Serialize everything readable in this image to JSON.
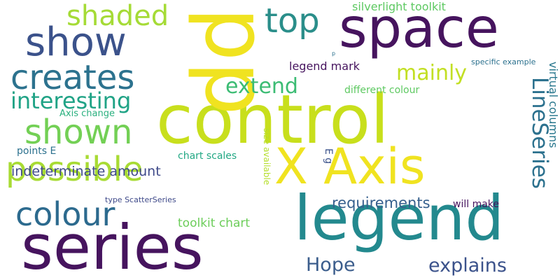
{
  "words": [
    {
      "text": "control",
      "color": "#c8df1c",
      "vertical": false
    },
    {
      "text": "pp",
      "color": "#f0e320",
      "vertical": true
    },
    {
      "text": "series",
      "color": "#46145e",
      "vertical": false
    },
    {
      "text": "legend",
      "color": "#23898e",
      "vertical": false
    },
    {
      "text": "space",
      "color": "#46145e",
      "vertical": false
    },
    {
      "text": "X Axis",
      "color": "#f0e320",
      "vertical": false
    },
    {
      "text": "show",
      "color": "#3b528b",
      "vertical": false
    },
    {
      "text": "creates",
      "color": "#2c728e",
      "vertical": false
    },
    {
      "text": "possible",
      "color": "#a8db34",
      "vertical": false
    },
    {
      "text": "shown",
      "color": "#73d055",
      "vertical": false
    },
    {
      "text": "colour",
      "color": "#2c6a8e",
      "vertical": false
    },
    {
      "text": "shaded",
      "color": "#a5db36",
      "vertical": false
    },
    {
      "text": "top",
      "color": "#2a8e8a",
      "vertical": false
    },
    {
      "text": "LineSeries",
      "color": "#2c718e",
      "vertical": true
    },
    {
      "text": "interesting",
      "color": "#20a386",
      "vertical": false
    },
    {
      "text": "extend",
      "color": "#3cbc74",
      "vertical": false
    },
    {
      "text": "mainly",
      "color": "#c2df23",
      "vertical": false
    },
    {
      "text": "Hope",
      "color": "#3b5d8c",
      "vertical": false
    },
    {
      "text": "explains",
      "color": "#3b528b",
      "vertical": false
    },
    {
      "text": "requirements",
      "color": "#355f8d",
      "vertical": false
    },
    {
      "text": "indeterminate amount",
      "color": "#3e4989",
      "vertical": false
    },
    {
      "text": "silverlight toolkit",
      "color": "#5ec962",
      "vertical": false
    },
    {
      "text": "legend mark",
      "color": "#46145e",
      "vertical": false
    },
    {
      "text": "virtual columns",
      "color": "#2a788e",
      "vertical": true
    },
    {
      "text": "toolkit chart",
      "color": "#6ccd5a",
      "vertical": false
    },
    {
      "text": "different colour",
      "color": "#5ec962",
      "vertical": false
    },
    {
      "text": "points E",
      "color": "#2c718e",
      "vertical": false
    },
    {
      "text": "chart scales",
      "color": "#22a884",
      "vertical": false
    },
    {
      "text": "will make",
      "color": "#46145e",
      "vertical": false
    },
    {
      "text": "E g",
      "color": "#3b528b",
      "vertical": true
    },
    {
      "text": "Axis change",
      "color": "#2ab07f",
      "vertical": false
    },
    {
      "text": "size available",
      "color": "#b5de2b",
      "vertical": true
    },
    {
      "text": "specific example",
      "color": "#2c718e",
      "vertical": false
    },
    {
      "text": "type ScatterSeries",
      "color": "#3e4989",
      "vertical": false
    },
    {
      "text": "p",
      "color": "#2c728e",
      "vertical": false
    }
  ]
}
